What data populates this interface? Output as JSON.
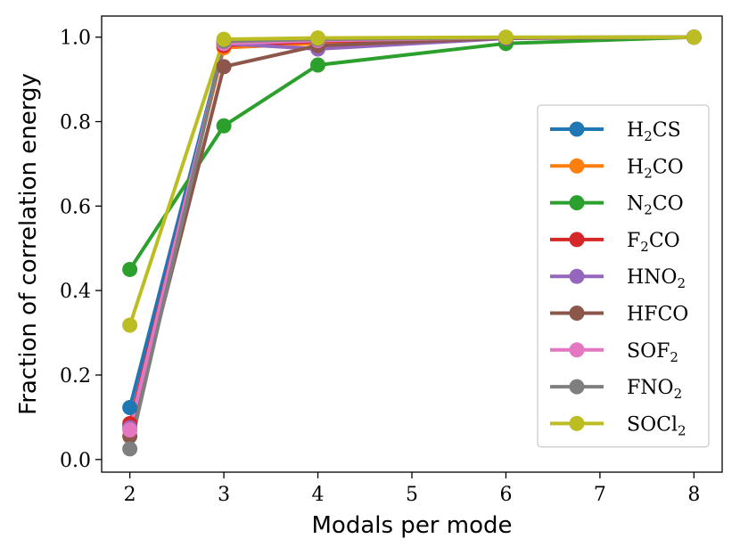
{
  "chart_data": {
    "type": "line",
    "title": "",
    "xlabel": "Modals per mode",
    "ylabel": "Fraction of correlation energy",
    "xlim": [
      1.7,
      8.3
    ],
    "ylim": [
      -0.03,
      1.05
    ],
    "xticks": [
      2,
      3,
      4,
      5,
      6,
      7,
      8
    ],
    "yticks": [
      0.0,
      0.2,
      0.4,
      0.6,
      0.8,
      1.0
    ],
    "ytick_labels": [
      "0.0",
      "0.2",
      "0.4",
      "0.6",
      "0.8",
      "1.0"
    ],
    "grid": false,
    "legend_position": "center-right",
    "x": [
      2,
      3,
      4,
      6,
      8
    ],
    "series": [
      {
        "name": "H2CS",
        "label_parts": [
          [
            "H",
            ""
          ],
          [
            "2",
            "sub"
          ],
          [
            "CS",
            ""
          ]
        ],
        "color": "#1f77b4",
        "values": [
          0.123,
          0.985,
          0.993,
          0.999,
          1.0
        ]
      },
      {
        "name": "H2CO",
        "label_parts": [
          [
            "H",
            ""
          ],
          [
            "2",
            "sub"
          ],
          [
            "CO",
            ""
          ]
        ],
        "color": "#ff7f0e",
        "values": [
          0.08,
          0.975,
          0.985,
          0.998,
          1.0
        ]
      },
      {
        "name": "N2CO",
        "label_parts": [
          [
            "N",
            ""
          ],
          [
            "2",
            "sub"
          ],
          [
            "CO",
            ""
          ]
        ],
        "color": "#2ca02c",
        "values": [
          0.45,
          0.79,
          0.934,
          0.985,
          1.0
        ]
      },
      {
        "name": "F2CO",
        "label_parts": [
          [
            "F",
            ""
          ],
          [
            "2",
            "sub"
          ],
          [
            "CO",
            ""
          ]
        ],
        "color": "#d62728",
        "values": [
          0.085,
          0.98,
          0.99,
          0.999,
          1.0
        ]
      },
      {
        "name": "HNO2",
        "label_parts": [
          [
            "HNO",
            ""
          ],
          [
            "2",
            "sub"
          ]
        ],
        "color": "#9467bd",
        "values": [
          0.075,
          0.985,
          0.972,
          0.997,
          1.0
        ]
      },
      {
        "name": "HFCO",
        "label_parts": [
          [
            "HFCO",
            ""
          ]
        ],
        "color": "#8c564b",
        "values": [
          0.055,
          0.93,
          0.98,
          0.998,
          1.0
        ]
      },
      {
        "name": "SOF2",
        "label_parts": [
          [
            "SOF",
            ""
          ],
          [
            "2",
            "sub"
          ]
        ],
        "color": "#e377c2",
        "values": [
          0.07,
          0.985,
          0.992,
          0.999,
          1.0
        ]
      },
      {
        "name": "FNO2",
        "label_parts": [
          [
            "FNO",
            ""
          ],
          [
            "2",
            "sub"
          ]
        ],
        "color": "#7f7f7f",
        "values": [
          0.025,
          0.99,
          0.995,
          0.999,
          1.0
        ]
      },
      {
        "name": "SOCl2",
        "label_parts": [
          [
            "SOCl",
            ""
          ],
          [
            "2",
            "sub"
          ]
        ],
        "color": "#bcbd22",
        "values": [
          0.318,
          0.995,
          0.998,
          1.0,
          1.0
        ]
      }
    ]
  }
}
